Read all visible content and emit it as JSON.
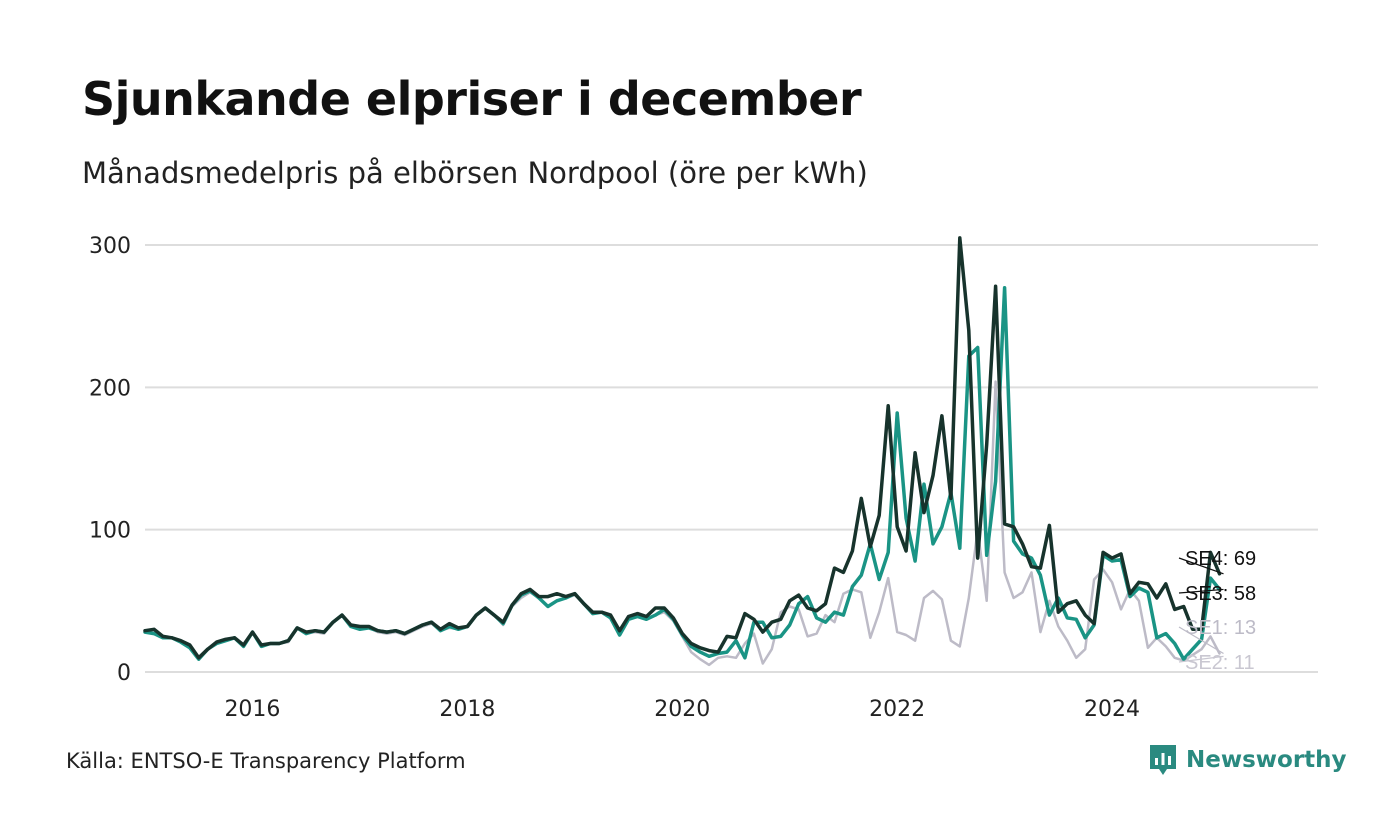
{
  "title": "Sjunkande elpriser i december",
  "subtitle": "Månadsmedelpris på elbörsen Nordpool (öre per kWh)",
  "source": "Källa: ENTSO-E Transparency Platform",
  "brand": {
    "name": "Newsworthy",
    "icon": "bar-chart-speech-bubble-icon",
    "color": "#2a8a80"
  },
  "chart_data": {
    "type": "line",
    "title": "Sjunkande elpriser i december",
    "ylabel": "öre per kWh",
    "xlabel": "",
    "ylim": [
      0,
      300
    ],
    "y_ticks": [
      0,
      100,
      200,
      300
    ],
    "x_ticks": [
      "2016",
      "2018",
      "2020",
      "2022",
      "2024"
    ],
    "x_start": "2015-01",
    "x_end": "2024-12",
    "x_axis_max": "2025-12",
    "grid": "horizontal",
    "end_labels": true,
    "series": [
      {
        "name": "SE1",
        "end_label": "SE1: 13",
        "color": "#bdbbc7",
        "values": [
          28,
          28,
          24,
          24,
          22,
          18,
          10,
          16,
          20,
          22,
          24,
          18,
          28,
          18,
          20,
          20,
          21,
          31,
          27,
          28,
          27,
          35,
          40,
          32,
          30,
          31,
          28,
          27,
          28,
          26,
          29,
          32,
          34,
          29,
          31,
          30,
          32,
          40,
          45,
          40,
          33,
          46,
          52,
          56,
          52,
          46,
          50,
          52,
          54,
          48,
          41,
          42,
          39,
          27,
          37,
          39,
          37,
          40,
          42,
          36,
          25,
          14,
          9,
          5,
          10,
          11,
          10,
          20,
          27,
          6,
          16,
          42,
          46,
          44,
          25,
          27,
          40,
          35,
          55,
          58,
          56,
          24,
          42,
          66,
          28,
          26,
          22,
          52,
          57,
          51,
          22,
          18,
          52,
          100,
          50,
          204,
          70,
          52,
          56,
          70,
          28,
          50,
          32,
          22,
          10,
          16,
          65,
          72,
          63,
          44,
          58,
          50,
          17,
          24,
          18,
          10,
          8,
          12,
          16,
          25,
          13
        ]
      },
      {
        "name": "SE2",
        "end_label": "SE2: 11",
        "color": "#cfcdd6",
        "hidden": true,
        "values": [
          28,
          28,
          24,
          24,
          22,
          18,
          10,
          16,
          20,
          22,
          24,
          18,
          28,
          18,
          20,
          20,
          21,
          31,
          27,
          28,
          27,
          35,
          40,
          32,
          30,
          31,
          28,
          27,
          28,
          26,
          29,
          32,
          34,
          29,
          31,
          30,
          32,
          40,
          45,
          40,
          33,
          46,
          52,
          56,
          52,
          46,
          50,
          52,
          54,
          48,
          41,
          42,
          39,
          27,
          37,
          39,
          37,
          40,
          42,
          36,
          25,
          14,
          9,
          5,
          10,
          11,
          10,
          20,
          27,
          6,
          16,
          42,
          46,
          44,
          25,
          27,
          40,
          35,
          55,
          58,
          56,
          24,
          42,
          66,
          28,
          26,
          22,
          52,
          57,
          51,
          22,
          18,
          52,
          100,
          50,
          204,
          70,
          52,
          56,
          70,
          28,
          50,
          32,
          22,
          10,
          16,
          65,
          72,
          63,
          44,
          58,
          50,
          17,
          24,
          18,
          10,
          8,
          12,
          16,
          22,
          11
        ]
      },
      {
        "name": "SE3",
        "end_label": "SE3: 58",
        "color": "#1a9485",
        "values": [
          28,
          27,
          24,
          24,
          21,
          17,
          9,
          16,
          20,
          22,
          24,
          18,
          28,
          18,
          20,
          20,
          22,
          31,
          27,
          29,
          28,
          35,
          40,
          32,
          30,
          31,
          29,
          28,
          29,
          27,
          30,
          33,
          35,
          29,
          32,
          30,
          32,
          40,
          45,
          40,
          34,
          47,
          54,
          57,
          52,
          46,
          50,
          52,
          55,
          48,
          41,
          42,
          38,
          26,
          37,
          39,
          37,
          40,
          44,
          37,
          26,
          18,
          14,
          11,
          13,
          14,
          22,
          10,
          35,
          35,
          24,
          25,
          33,
          48,
          53,
          38,
          35,
          42,
          40,
          60,
          68,
          90,
          65,
          84,
          182,
          108,
          78,
          132,
          90,
          102,
          126,
          87,
          222,
          228,
          82,
          134,
          270,
          92,
          83,
          80,
          68,
          40,
          52,
          38,
          37,
          24,
          33,
          82,
          78,
          79,
          53,
          59,
          56,
          24,
          27,
          20,
          9,
          16,
          23,
          66,
          58
        ]
      },
      {
        "name": "SE4",
        "end_label": "SE4: 69",
        "color": "#17332c",
        "values": [
          29,
          30,
          25,
          24,
          22,
          19,
          10,
          16,
          21,
          23,
          24,
          19,
          28,
          19,
          20,
          20,
          22,
          31,
          28,
          29,
          28,
          35,
          40,
          33,
          32,
          32,
          29,
          28,
          29,
          27,
          30,
          33,
          35,
          30,
          34,
          31,
          32,
          40,
          45,
          40,
          35,
          47,
          55,
          58,
          53,
          53,
          55,
          53,
          55,
          48,
          42,
          42,
          40,
          29,
          39,
          41,
          39,
          45,
          45,
          38,
          27,
          20,
          17,
          15,
          14,
          25,
          24,
          41,
          37,
          28,
          35,
          37,
          50,
          54,
          45,
          43,
          48,
          73,
          70,
          85,
          122,
          88,
          110,
          187,
          102,
          85,
          154,
          112,
          138,
          180,
          122,
          305,
          240,
          80,
          160,
          271,
          104,
          102,
          90,
          74,
          73,
          103,
          42,
          48,
          50,
          40,
          34,
          84,
          80,
          83,
          55,
          63,
          62,
          52,
          62,
          44,
          46,
          30,
          30,
          84,
          69
        ]
      }
    ]
  }
}
